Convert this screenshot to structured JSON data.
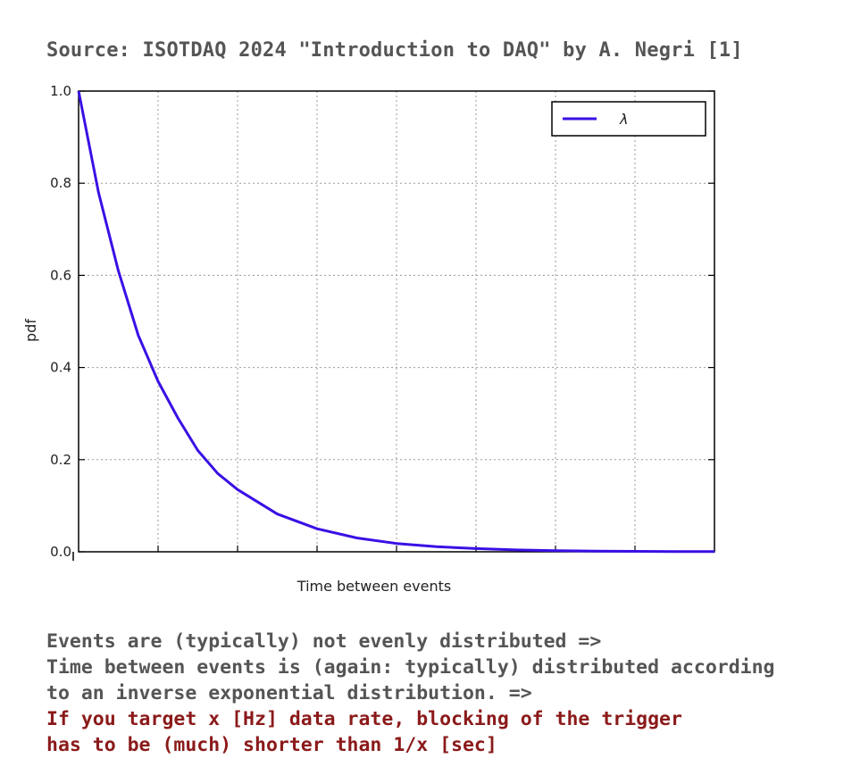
{
  "header": {
    "source": "Source: ISOTDAQ 2024 \"Introduction to DAQ\" by A. Negri [1]"
  },
  "chart_data": {
    "type": "line",
    "xlabel": "Time between events",
    "ylabel": "pdf",
    "xlim": [
      0,
      8
    ],
    "ylim": [
      0,
      1.0
    ],
    "yticks": [
      "0.0",
      "0.2",
      "0.4",
      "0.6",
      "0.8",
      "1.0"
    ],
    "ytick_values": [
      0.0,
      0.2,
      0.4,
      0.6,
      0.8,
      1.0
    ],
    "xgrid": [
      1,
      2,
      3,
      4,
      5,
      6,
      7
    ],
    "grid": true,
    "legend": "top-right",
    "series": [
      {
        "name": "λ",
        "color": "#3a10e5",
        "x": [
          0,
          0.25,
          0.5,
          0.75,
          1.0,
          1.25,
          1.5,
          1.75,
          2.0,
          2.5,
          3.0,
          3.5,
          4.0,
          4.5,
          5.0,
          5.5,
          6.0,
          6.5,
          7.0,
          7.5,
          8.0
        ],
        "y": [
          1.0,
          0.78,
          0.61,
          0.47,
          0.37,
          0.29,
          0.22,
          0.17,
          0.135,
          0.082,
          0.05,
          0.03,
          0.018,
          0.011,
          0.007,
          0.004,
          0.0025,
          0.0015,
          0.0009,
          0.0006,
          0.0003
        ]
      }
    ]
  },
  "notes": {
    "line1": "Events are (typically) not evenly distributed =>",
    "line2": "Time between events is (again: typically) distributed according",
    "line3": "to an inverse exponential distribution. =>",
    "line4": "If you target x [Hz] data rate, blocking of the trigger",
    "line5": "has to be (much) shorter than 1/x [sec]"
  }
}
